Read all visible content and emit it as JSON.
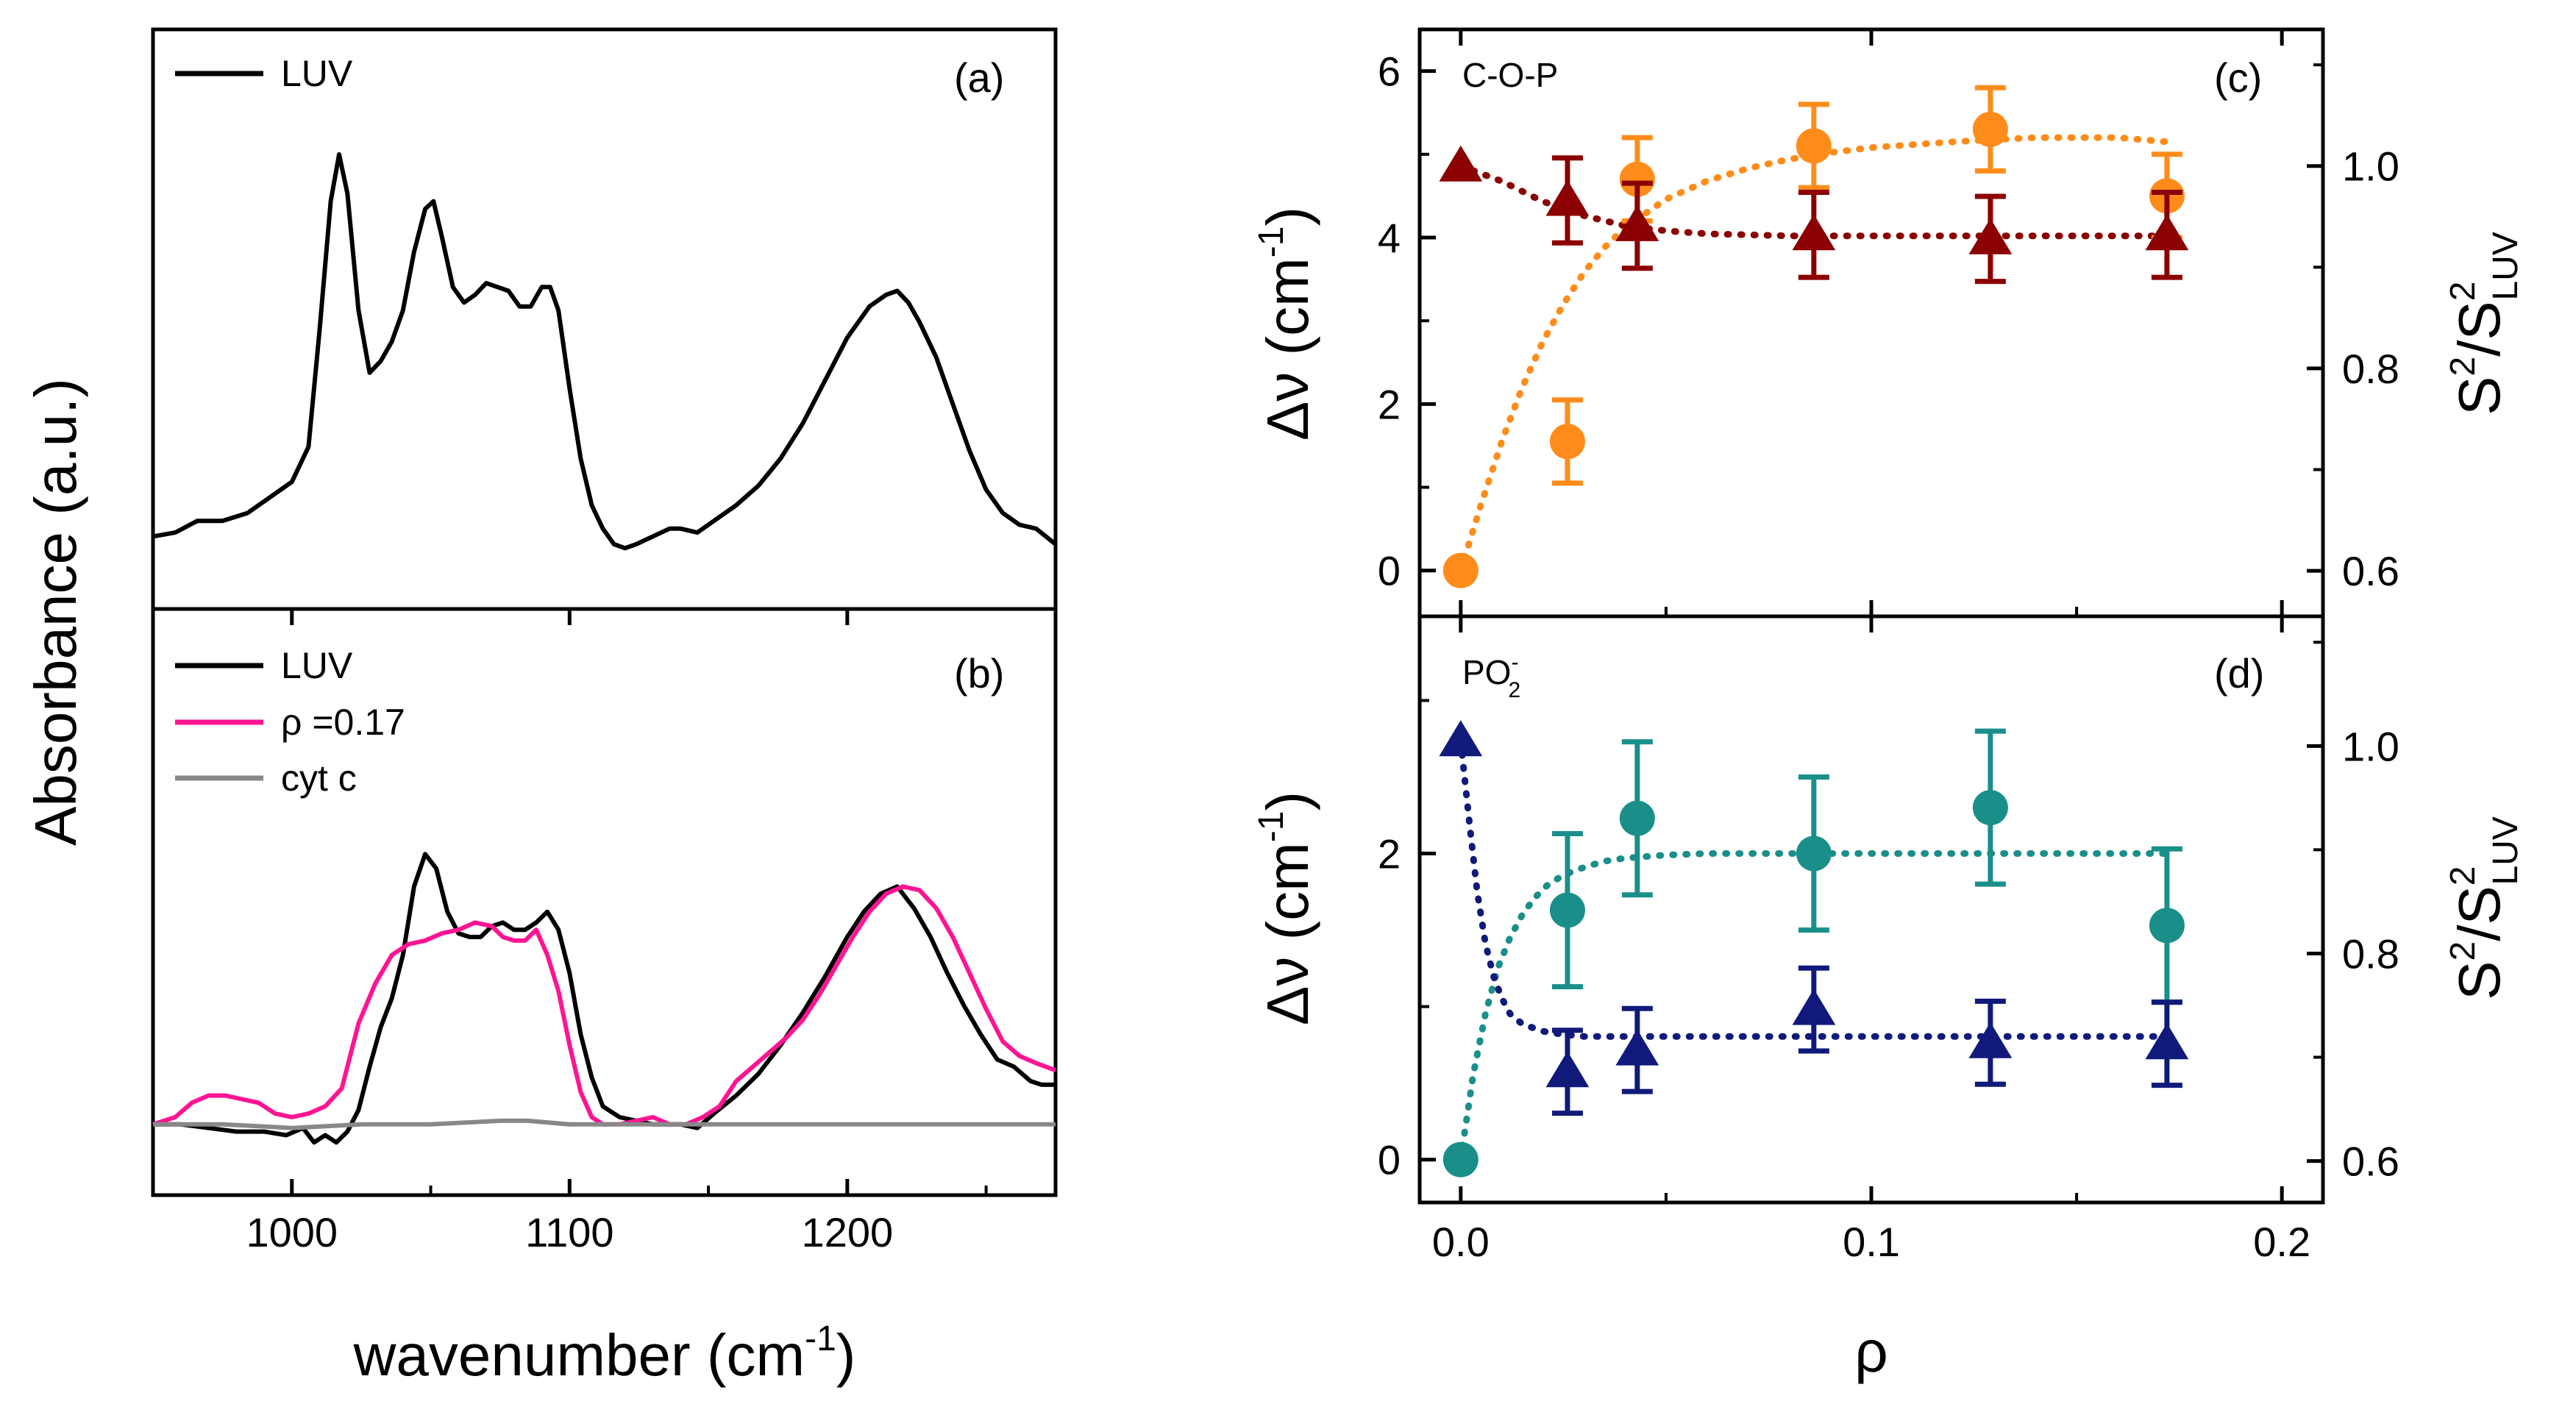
{
  "chart_data": [
    {
      "panel": "a",
      "type": "line",
      "panel_label": "(a)",
      "xlabel": "wavenumber (cm-1)",
      "ylabel": "Absorbance (a.u.)",
      "xlim": [
        950,
        1275
      ],
      "ylim": [
        0,
        1
      ],
      "legend": "top-left",
      "series": [
        {
          "name": "LUV",
          "color": "#000000",
          "x": [
            950,
            958,
            966,
            975,
            984,
            992,
            1000,
            1006,
            1010,
            1014,
            1017,
            1020,
            1024,
            1028,
            1032,
            1036,
            1040,
            1044,
            1048,
            1051,
            1054,
            1058,
            1062,
            1066,
            1070,
            1074,
            1078,
            1082,
            1086,
            1090,
            1093,
            1096,
            1100,
            1104,
            1108,
            1112,
            1116,
            1120,
            1124,
            1130,
            1136,
            1140,
            1146,
            1152,
            1160,
            1168,
            1176,
            1184,
            1192,
            1200,
            1208,
            1214,
            1218,
            1222,
            1226,
            1232,
            1238,
            1244,
            1250,
            1256,
            1262,
            1268,
            1275
          ],
          "y": [
            0.02,
            0.03,
            0.06,
            0.06,
            0.08,
            0.12,
            0.16,
            0.25,
            0.55,
            0.88,
            1.0,
            0.9,
            0.6,
            0.44,
            0.47,
            0.52,
            0.6,
            0.75,
            0.86,
            0.88,
            0.79,
            0.66,
            0.62,
            0.64,
            0.67,
            0.66,
            0.65,
            0.61,
            0.61,
            0.66,
            0.66,
            0.6,
            0.4,
            0.22,
            0.1,
            0.04,
            0.0,
            -0.01,
            0.0,
            0.02,
            0.04,
            0.04,
            0.03,
            0.06,
            0.1,
            0.15,
            0.22,
            0.31,
            0.42,
            0.53,
            0.61,
            0.64,
            0.65,
            0.62,
            0.57,
            0.48,
            0.36,
            0.24,
            0.14,
            0.08,
            0.05,
            0.04,
            0.0
          ]
        }
      ]
    },
    {
      "panel": "b",
      "type": "line",
      "panel_label": "(b)",
      "xlabel": "wavenumber (cm-1)",
      "ylabel": "Absorbance (a.u.)",
      "xlim": [
        950,
        1275
      ],
      "ylim": [
        0,
        1
      ],
      "xticks": [
        1000,
        1100,
        1200
      ],
      "legend": "top-left",
      "series": [
        {
          "name": "LUV",
          "color": "#000000",
          "x": [
            950,
            960,
            970,
            980,
            990,
            998,
            1004,
            1008,
            1012,
            1016,
            1020,
            1024,
            1028,
            1032,
            1036,
            1040,
            1044,
            1048,
            1052,
            1056,
            1060,
            1064,
            1068,
            1072,
            1076,
            1080,
            1084,
            1088,
            1092,
            1096,
            1100,
            1104,
            1108,
            1112,
            1118,
            1124,
            1130,
            1136,
            1140,
            1146,
            1152,
            1160,
            1168,
            1176,
            1184,
            1192,
            1200,
            1206,
            1212,
            1218,
            1224,
            1230,
            1236,
            1242,
            1248,
            1254,
            1260,
            1266,
            1270,
            1275
          ],
          "y": [
            0.08,
            0.08,
            0.07,
            0.06,
            0.06,
            0.05,
            0.07,
            0.03,
            0.05,
            0.03,
            0.06,
            0.12,
            0.24,
            0.35,
            0.43,
            0.55,
            0.74,
            0.83,
            0.79,
            0.67,
            0.61,
            0.6,
            0.6,
            0.63,
            0.64,
            0.62,
            0.62,
            0.64,
            0.67,
            0.62,
            0.5,
            0.33,
            0.21,
            0.13,
            0.1,
            0.09,
            0.08,
            0.08,
            0.08,
            0.07,
            0.11,
            0.16,
            0.22,
            0.3,
            0.39,
            0.49,
            0.6,
            0.67,
            0.72,
            0.74,
            0.68,
            0.6,
            0.5,
            0.41,
            0.33,
            0.26,
            0.24,
            0.2,
            0.19,
            0.19
          ]
        },
        {
          "name": "ρ =0.17",
          "color": "#ff1493",
          "x": [
            950,
            958,
            964,
            970,
            976,
            982,
            988,
            994,
            1000,
            1006,
            1012,
            1018,
            1024,
            1030,
            1036,
            1042,
            1048,
            1054,
            1060,
            1066,
            1072,
            1076,
            1080,
            1084,
            1088,
            1092,
            1096,
            1100,
            1104,
            1108,
            1112,
            1118,
            1124,
            1130,
            1136,
            1142,
            1148,
            1154,
            1160,
            1166,
            1172,
            1178,
            1184,
            1190,
            1196,
            1202,
            1208,
            1214,
            1220,
            1226,
            1232,
            1238,
            1244,
            1250,
            1256,
            1262,
            1268,
            1275
          ],
          "y": [
            0.08,
            0.1,
            0.14,
            0.16,
            0.16,
            0.15,
            0.14,
            0.11,
            0.1,
            0.11,
            0.13,
            0.18,
            0.36,
            0.47,
            0.55,
            0.58,
            0.59,
            0.61,
            0.62,
            0.64,
            0.63,
            0.6,
            0.59,
            0.59,
            0.62,
            0.55,
            0.45,
            0.3,
            0.17,
            0.1,
            0.08,
            0.08,
            0.09,
            0.1,
            0.08,
            0.08,
            0.1,
            0.13,
            0.2,
            0.24,
            0.28,
            0.32,
            0.37,
            0.44,
            0.52,
            0.6,
            0.67,
            0.72,
            0.74,
            0.73,
            0.68,
            0.6,
            0.5,
            0.4,
            0.31,
            0.27,
            0.25,
            0.23
          ]
        },
        {
          "name": "cyt c",
          "color": "#888888",
          "x": [
            950,
            975,
            1000,
            1025,
            1050,
            1075,
            1085,
            1100,
            1125,
            1150,
            1175,
            1200,
            1225,
            1250,
            1275
          ],
          "y": [
            0.08,
            0.08,
            0.07,
            0.08,
            0.08,
            0.09,
            0.09,
            0.08,
            0.08,
            0.08,
            0.08,
            0.08,
            0.08,
            0.08,
            0.08
          ]
        }
      ]
    },
    {
      "panel": "c",
      "type": "scatter",
      "panel_label": "(c)",
      "annotation": "C-O-P",
      "xlabel": "ρ",
      "ylabel": "Δν (cm-1)",
      "y2label": "S2/S2LUV",
      "xlim": [
        -0.01,
        0.21
      ],
      "ylim": [
        -0.55,
        6.5
      ],
      "y2lim": [
        0.555,
        1.135
      ],
      "yticks": [
        0,
        2,
        4,
        6
      ],
      "y2ticks": [
        0.6,
        0.8,
        1.0
      ],
      "series": [
        {
          "name": "Δν",
          "axis": "left",
          "marker": "circle",
          "color": "#ff8c1a",
          "x": [
            0.0,
            0.026,
            0.043,
            0.086,
            0.129,
            0.172
          ],
          "y": [
            0.0,
            1.55,
            4.7,
            5.1,
            5.3,
            4.5
          ],
          "yerr": [
            0.0,
            0.5,
            0.5,
            0.5,
            0.5,
            0.5
          ],
          "fit_x": [
            0.0,
            0.005,
            0.01,
            0.015,
            0.02,
            0.025,
            0.03,
            0.035,
            0.04,
            0.05,
            0.06,
            0.07,
            0.08,
            0.09,
            0.1,
            0.12,
            0.14,
            0.16,
            0.172
          ],
          "fit_y": [
            0.0,
            0.8,
            1.55,
            2.2,
            2.75,
            3.2,
            3.58,
            3.88,
            4.12,
            4.46,
            4.68,
            4.83,
            4.94,
            5.02,
            5.08,
            5.15,
            5.2,
            5.2,
            5.15
          ]
        },
        {
          "name": "S2/S2LUV",
          "axis": "right",
          "marker": "triangle",
          "color": "#8b0000",
          "x": [
            0.0,
            0.026,
            0.043,
            0.086,
            0.129,
            0.172
          ],
          "y": [
            1.0,
            0.966,
            0.941,
            0.932,
            0.928,
            0.932
          ],
          "yerr": [
            0.0,
            0.042,
            0.042,
            0.042,
            0.042,
            0.042
          ],
          "fit_x": [
            0.0,
            0.01,
            0.02,
            0.03,
            0.04,
            0.05,
            0.06,
            0.08,
            0.1,
            0.12,
            0.14,
            0.16,
            0.172
          ],
          "fit_y": [
            1.0,
            0.985,
            0.965,
            0.951,
            0.941,
            0.936,
            0.933,
            0.931,
            0.931,
            0.931,
            0.931,
            0.931,
            0.931
          ]
        }
      ]
    },
    {
      "panel": "d",
      "type": "scatter",
      "panel_label": "(d)",
      "annotation": "PO2-",
      "xlabel": "ρ",
      "ylabel": "Δν (cm-1)",
      "y2label": "S2/S2LUV",
      "xlim": [
        -0.01,
        0.21
      ],
      "ylim": [
        -0.28,
        3.55
      ],
      "y2lim": [
        0.56,
        1.125
      ],
      "xticks": [
        0.0,
        0.1,
        0.2
      ],
      "yticks": [
        0,
        2
      ],
      "y2ticks": [
        0.6,
        0.8,
        1.0
      ],
      "series": [
        {
          "name": "Δν",
          "axis": "left",
          "marker": "circle",
          "color": "#1a8f8a",
          "x": [
            0.0,
            0.026,
            0.043,
            0.086,
            0.129,
            0.172
          ],
          "y": [
            0.0,
            1.63,
            2.23,
            2.0,
            2.3,
            1.53
          ],
          "yerr": [
            0.0,
            0.5,
            0.5,
            0.5,
            0.5,
            0.5
          ],
          "fit_x": [
            0.0,
            0.003,
            0.006,
            0.009,
            0.012,
            0.015,
            0.018,
            0.021,
            0.025,
            0.03,
            0.035,
            0.04,
            0.05,
            0.06,
            0.08,
            0.1,
            0.12,
            0.14,
            0.16,
            0.172
          ],
          "fit_y": [
            0.0,
            0.55,
            0.95,
            1.25,
            1.45,
            1.6,
            1.71,
            1.79,
            1.86,
            1.91,
            1.95,
            1.97,
            1.99,
            2.0,
            2.0,
            2.0,
            2.0,
            2.0,
            2.0,
            2.0
          ]
        },
        {
          "name": "S2/S2LUV",
          "axis": "right",
          "marker": "triangle",
          "color": "#0f1a7a",
          "x": [
            0.0,
            0.026,
            0.043,
            0.086,
            0.129,
            0.172
          ],
          "y": [
            1.005,
            0.686,
            0.707,
            0.746,
            0.714,
            0.713
          ],
          "yerr": [
            0.0,
            0.04,
            0.04,
            0.04,
            0.04,
            0.04
          ],
          "fit_x": [
            0.0,
            0.002,
            0.004,
            0.006,
            0.008,
            0.01,
            0.012,
            0.015,
            0.02,
            0.025,
            0.03,
            0.04,
            0.06,
            0.08,
            0.1,
            0.12,
            0.14,
            0.16,
            0.172
          ],
          "fit_y": [
            1.005,
            0.93,
            0.86,
            0.81,
            0.778,
            0.757,
            0.742,
            0.732,
            0.725,
            0.722,
            0.72,
            0.72,
            0.72,
            0.72,
            0.72,
            0.72,
            0.72,
            0.72,
            0.72
          ]
        }
      ]
    }
  ],
  "labels": {
    "left_ylabel": "Absorbance (a.u.)",
    "left_xlabel_main": "wavenumber (cm",
    "left_xlabel_sup": "-1",
    "left_xlabel_close": ")",
    "rho": "ρ",
    "delta_nu": "Δν (cm",
    "delta_nu_sup": "-1",
    "close_paren": ")",
    "s_main": "S",
    "s_sup": "2",
    "s_slash": "/S",
    "s_sub": "LUV",
    "annot_c": "C-O-P",
    "annot_d_main": "PO",
    "annot_d_sup": "-",
    "annot_d_sub": "2",
    "panel_a": "(a)",
    "panel_b": "(b)",
    "panel_c": "(c)",
    "panel_d": "(d)",
    "legend_a_luv": "LUV",
    "legend_b_luv": "LUV",
    "legend_b_rho": "ρ =0.17",
    "legend_b_cytc": "cyt c"
  }
}
